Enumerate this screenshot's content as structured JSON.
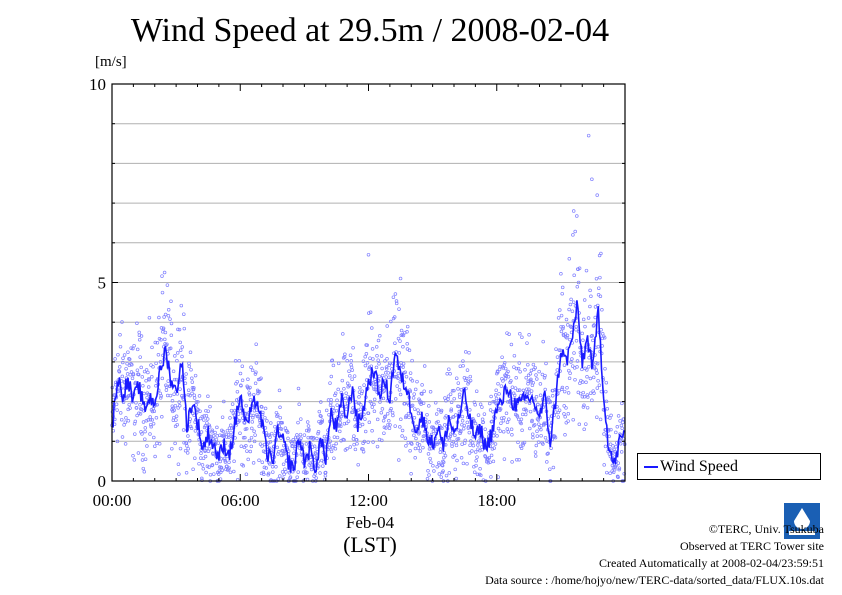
{
  "title": "Wind Speed at 29.5m / 2008-02-04",
  "y_unit": "[m/s]",
  "x_date_label": "Feb-04",
  "x_tz_label": "(LST)",
  "legend_label": "Wind Speed",
  "footer": {
    "copyright": "©TERC, Univ. Tsukuba",
    "observed": "Observed at TERC Tower site",
    "created": "Created Automatically at 2008-02-04/23:59:51",
    "source": "Data source : /home/hojyo/new/TERC-data/sorted_data/FLUX.10s.dat"
  },
  "colors": {
    "line": "#1a1aff",
    "scatter": "#8080ff",
    "grid": "#b0b0b0"
  },
  "chart_data": {
    "type": "line",
    "title": "Wind Speed at 29.5m / 2008-02-04",
    "ylabel": "[m/s]",
    "xlabel": "Feb-04 (LST)",
    "ylim": [
      0,
      10
    ],
    "xlim": [
      0,
      24
    ],
    "x_unit": "hours",
    "y_ticks": [
      "0",
      "5",
      "10"
    ],
    "x_ticks": [
      {
        "value": 0,
        "label": "00:00"
      },
      {
        "value": 6,
        "label": "06:00"
      },
      {
        "value": 12,
        "label": "12:00"
      },
      {
        "value": 18,
        "label": "18:00"
      }
    ],
    "grid": true,
    "series": [
      {
        "name": "Wind Speed",
        "x": [
          0.0,
          0.25,
          0.5,
          0.75,
          1.0,
          1.25,
          1.5,
          1.75,
          2.0,
          2.25,
          2.5,
          2.75,
          3.0,
          3.25,
          3.5,
          3.75,
          4.0,
          4.25,
          4.5,
          4.75,
          5.0,
          5.25,
          5.5,
          5.75,
          6.0,
          6.25,
          6.5,
          6.75,
          7.0,
          7.25,
          7.5,
          7.75,
          8.0,
          8.25,
          8.5,
          8.75,
          9.0,
          9.25,
          9.5,
          9.75,
          10.0,
          10.25,
          10.5,
          10.75,
          11.0,
          11.25,
          11.5,
          11.75,
          12.0,
          12.25,
          12.5,
          12.75,
          13.0,
          13.25,
          13.5,
          13.75,
          14.0,
          14.25,
          14.5,
          14.75,
          15.0,
          15.25,
          15.5,
          15.75,
          16.0,
          16.25,
          16.5,
          16.75,
          17.0,
          17.25,
          17.5,
          17.75,
          18.0,
          18.25,
          18.5,
          18.75,
          19.0,
          19.25,
          19.5,
          19.75,
          20.0,
          20.25,
          20.5,
          20.75,
          21.0,
          21.25,
          21.5,
          21.75,
          22.0,
          22.25,
          22.5,
          22.75,
          23.0,
          23.25,
          23.5,
          23.75,
          24.0
        ],
        "values": [
          1.3,
          2.6,
          2.2,
          2.5,
          2.0,
          2.4,
          1.8,
          2.1,
          2.0,
          2.7,
          3.3,
          2.6,
          2.2,
          3.1,
          1.4,
          2.0,
          1.5,
          0.8,
          1.2,
          0.9,
          0.6,
          0.9,
          0.7,
          1.4,
          2.2,
          1.4,
          1.7,
          2.1,
          1.5,
          0.7,
          0.5,
          1.2,
          1.0,
          0.5,
          0.3,
          1.1,
          0.5,
          0.8,
          0.3,
          1.0,
          0.6,
          1.7,
          1.3,
          2.0,
          1.6,
          2.4,
          1.4,
          1.8,
          2.5,
          2.8,
          2.2,
          2.5,
          2.1,
          3.3,
          2.6,
          2.4,
          1.8,
          1.3,
          1.6,
          1.2,
          0.9,
          1.4,
          0.8,
          1.6,
          1.2,
          1.6,
          2.2,
          1.5,
          1.1,
          1.3,
          0.8,
          1.2,
          1.8,
          2.0,
          2.4,
          2.0,
          1.9,
          2.0,
          2.1,
          2.0,
          1.6,
          2.1,
          1.0,
          2.0,
          3.3,
          3.0,
          3.5,
          4.4,
          3.0,
          3.6,
          2.8,
          4.3,
          2.2,
          0.8,
          0.4,
          1.0,
          1.2
        ]
      }
    ],
    "scatter_note": "10-second samples scattered about the mean line, up to about 8.7 m/s near 22:15"
  }
}
